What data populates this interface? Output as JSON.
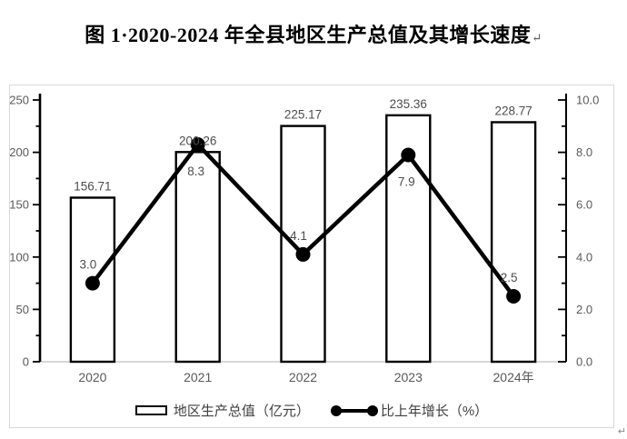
{
  "title": "图 1·2020-2024 年全县地区生产总值及其增长速度",
  "paragraph_mark": "↵",
  "chart_data": {
    "type": "bar",
    "combo": "bar+line (dual axis)",
    "categories": [
      "2020",
      "2021",
      "2022",
      "2023",
      "2024年"
    ],
    "series": [
      {
        "name": "地区生产总值（亿元）",
        "type": "bar",
        "axis": "left",
        "values": [
          156.71,
          200.26,
          225.17,
          235.36,
          228.77
        ],
        "labels": [
          "156.71",
          "200.26",
          "225.17",
          "235.36",
          "228.77"
        ]
      },
      {
        "name": "比上年增长（%）",
        "type": "line",
        "axis": "right",
        "values": [
          3.0,
          8.3,
          4.1,
          7.9,
          2.5
        ],
        "labels": [
          "3.0",
          "8.3",
          "4.1",
          "7.9",
          "2.5"
        ],
        "label_positions": [
          "above",
          "below",
          "above",
          "below",
          "above"
        ]
      }
    ],
    "left_axis": {
      "min": 0,
      "max": 250,
      "major_step": 50,
      "minor_step": 25,
      "tick_labels": [
        "0",
        "50",
        "100",
        "150",
        "200",
        "250"
      ]
    },
    "right_axis": {
      "min": 0,
      "max": 10,
      "major_step": 2,
      "minor_step": 1,
      "tick_labels": [
        "0.0",
        "2.0",
        "4.0",
        "6.0",
        "8.0",
        "10.0"
      ]
    },
    "grid": false,
    "legend_position": "bottom"
  },
  "legend": {
    "items": [
      {
        "label": "地区生产总值（亿元）",
        "marker": "bar-swatch"
      },
      {
        "label": "比上年增长（%）",
        "marker": "line-marker"
      }
    ]
  },
  "colors": {
    "bar_fill": "#ffffff",
    "bar_border": "#000000",
    "line": "#000000",
    "axis_line": "#000000",
    "x_axis_line": "#bfbfbf",
    "tick_label": "#595959",
    "data_label": "#4d4d4d",
    "frame_border": "#d9d9d9",
    "title": "#000000"
  }
}
